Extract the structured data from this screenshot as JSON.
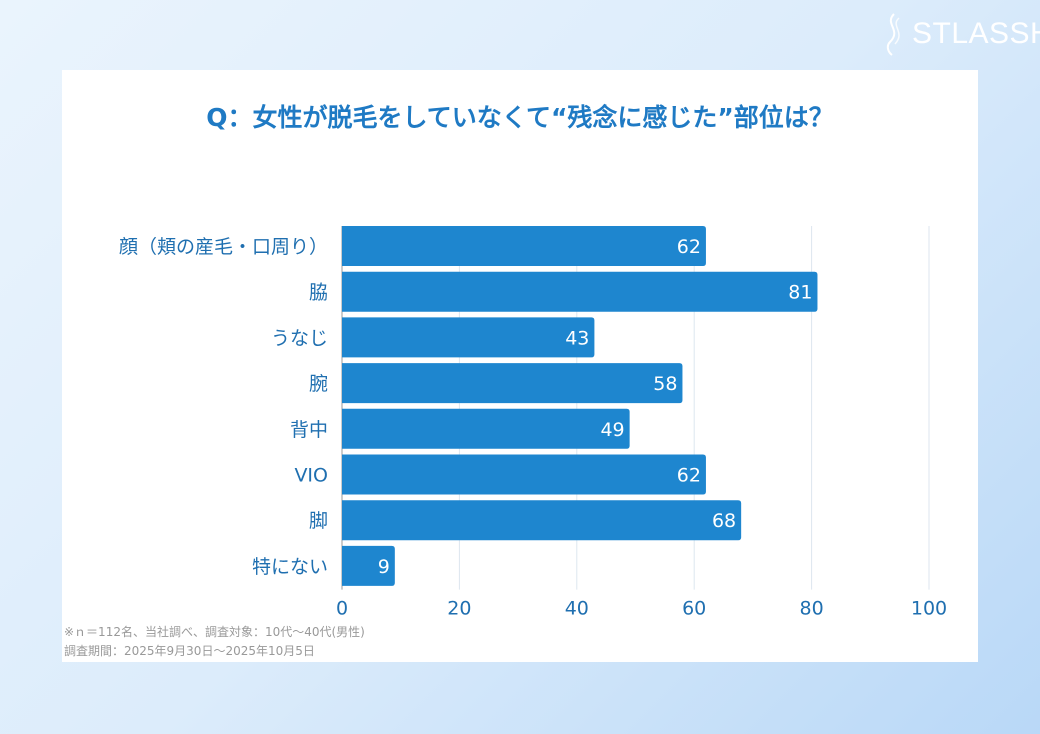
{
  "brand": {
    "logo_text": "STLASSH"
  },
  "chart_data": {
    "type": "bar",
    "orientation": "horizontal",
    "title": "Q：女性が脱毛をしていなくて“残念に感じた”部位は？",
    "categories": [
      "顔（頬の産毛・口周り）",
      "脇",
      "うなじ",
      "腕",
      "背中",
      "VIO",
      "脚",
      "特にない"
    ],
    "values": [
      62,
      81,
      43,
      58,
      49,
      62,
      68,
      9
    ],
    "xlim": [
      0,
      100
    ],
    "xticks": [
      0,
      20,
      40,
      60,
      80,
      100
    ],
    "grid": true,
    "bar_color": "#1e86cf",
    "tick_color": "#1f6fb0"
  },
  "notes": {
    "line1": "※ｎ＝112名、当社調べ、調査対象：10代～40代(男性)",
    "line2": "調査期間：2025年9月30日～2025年10月5日"
  }
}
